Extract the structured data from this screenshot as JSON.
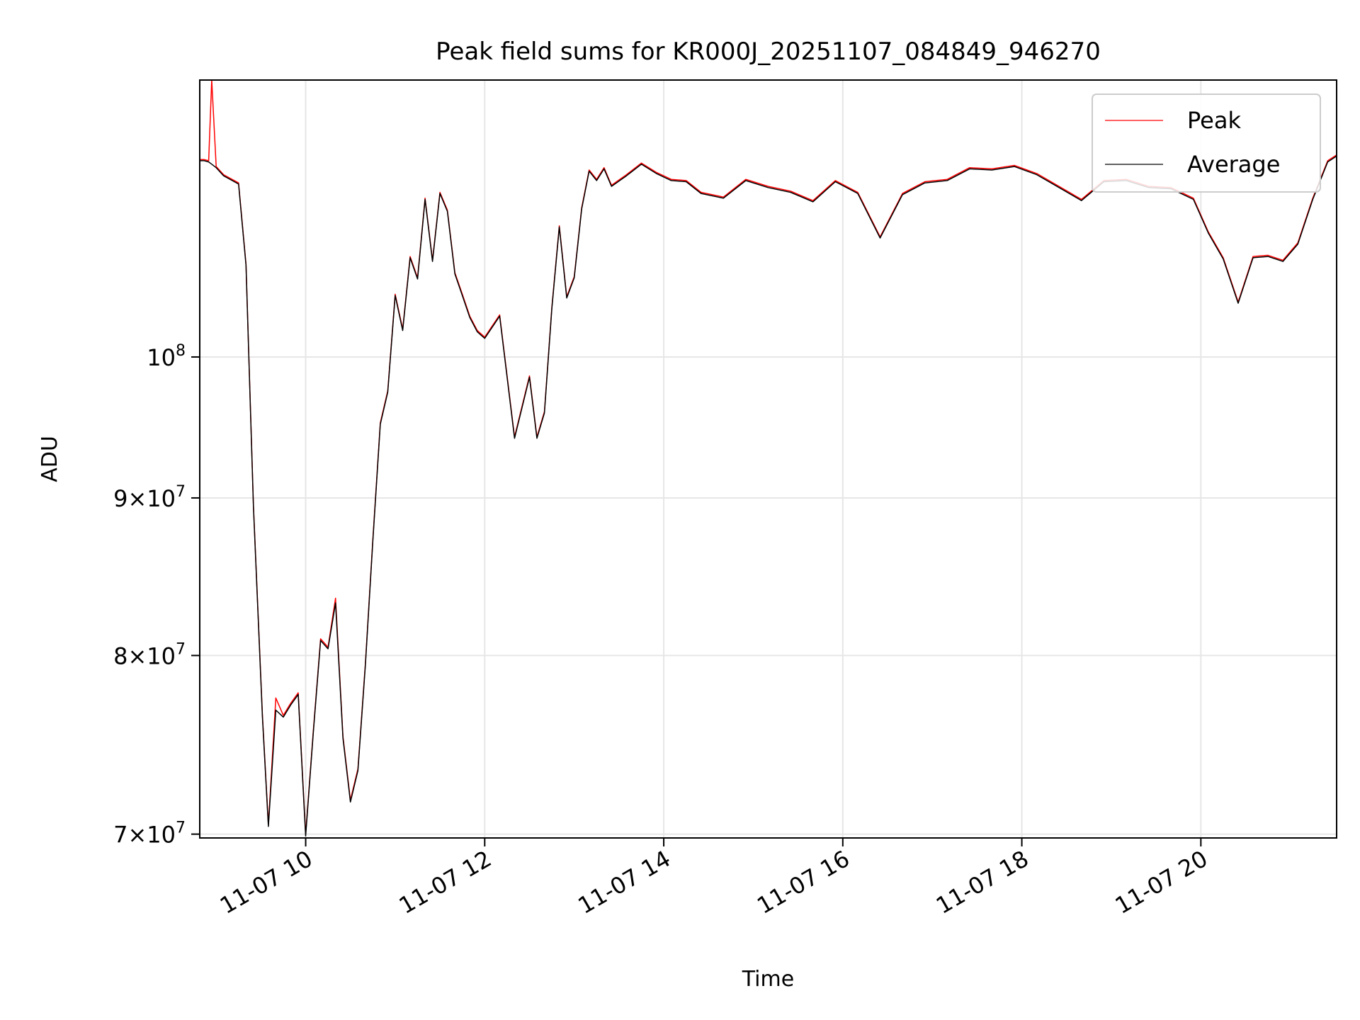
{
  "chart_data": {
    "type": "line",
    "title": "Peak field sums for KR000J_20251107_084849_946270",
    "xlabel": "Time",
    "ylabel": "ADU",
    "y_scale": "log",
    "grid": true,
    "legend_placement": "top-right",
    "colors": {
      "Peak": "#ff0000",
      "Average": "#000000"
    },
    "xlim": [
      "2025-11-07 08:49",
      "2025-11-07 21:31"
    ],
    "ylim": [
      69800000,
      123000000
    ],
    "x_ticks": [
      "11-07 10",
      "11-07 12",
      "11-07 14",
      "11-07 16",
      "11-07 18",
      "11-07 20"
    ],
    "y_ticks": [
      {
        "value": 70000000,
        "mantissa": "7",
        "exponent": "7"
      },
      {
        "value": 80000000,
        "mantissa": "8",
        "exponent": "7"
      },
      {
        "value": 90000000,
        "mantissa": "9",
        "exponent": "7"
      },
      {
        "value": 100000000,
        "base": "10",
        "exponent": "8"
      }
    ],
    "x": [
      "08:49",
      "08:52",
      "08:55",
      "08:57",
      "09:00",
      "09:05",
      "09:15",
      "09:20",
      "09:25",
      "09:31",
      "09:35",
      "09:40",
      "09:45",
      "09:50",
      "09:55",
      "10:00",
      "10:05",
      "10:10",
      "10:15",
      "10:20",
      "10:25",
      "10:30",
      "10:35",
      "10:40",
      "10:45",
      "10:50",
      "10:55",
      "11:00",
      "11:05",
      "11:10",
      "11:15",
      "11:20",
      "11:25",
      "11:30",
      "11:35",
      "11:40",
      "11:45",
      "11:50",
      "11:55",
      "12:00",
      "12:10",
      "12:20",
      "12:30",
      "12:35",
      "12:40",
      "12:45",
      "12:50",
      "12:55",
      "13:00",
      "13:05",
      "13:10",
      "13:15",
      "13:20",
      "13:25",
      "13:35",
      "13:45",
      "13:55",
      "14:05",
      "14:15",
      "14:25",
      "14:40",
      "14:55",
      "15:10",
      "15:25",
      "15:40",
      "15:55",
      "16:10",
      "16:25",
      "16:40",
      "16:55",
      "17:10",
      "17:25",
      "17:40",
      "17:55",
      "18:10",
      "18:25",
      "18:40",
      "18:55",
      "19:10",
      "19:25",
      "19:40",
      "19:55",
      "20:05",
      "20:15",
      "20:25",
      "20:35",
      "20:45",
      "20:55",
      "21:05",
      "21:15",
      "21:25",
      "21:31"
    ],
    "series": [
      {
        "name": "Peak",
        "values": [
          115900000,
          115900000,
          115800000,
          123000000,
          115300000,
          114600000,
          113900000,
          107200000,
          89500000,
          76500000,
          70500000,
          77500000,
          76500000,
          77200000,
          77800000,
          70000000,
          75500000,
          81000000,
          80500000,
          83500000,
          75300000,
          71800000,
          73500000,
          79500000,
          87200000,
          95200000,
          97500000,
          104800000,
          102100000,
          107800000,
          106100000,
          112600000,
          107500000,
          113100000,
          111600000,
          106500000,
          104800000,
          103100000,
          102000000,
          101500000,
          103200000,
          94200000,
          98600000,
          94200000,
          96000000,
          103800000,
          110300000,
          104600000,
          106200000,
          111800000,
          115000000,
          114200000,
          115200000,
          113700000,
          114600000,
          115600000,
          114800000,
          114200000,
          114100000,
          113100000,
          112700000,
          114200000,
          113600000,
          113200000,
          112400000,
          114100000,
          113100000,
          109400000,
          113000000,
          114000000,
          114200000,
          115200000,
          115100000,
          115400000,
          114700000,
          113600000,
          112500000,
          114100000,
          114200000,
          113600000,
          113500000,
          112600000,
          109800000,
          107700000,
          104200000,
          107800000,
          107900000,
          107500000,
          108900000,
          112600000,
          115800000,
          116300000
        ]
      },
      {
        "name": "Average",
        "values": [
          115800000,
          115800000,
          115700000,
          115500000,
          115200000,
          114500000,
          113800000,
          107100000,
          89400000,
          76400000,
          70400000,
          76800000,
          76400000,
          77100000,
          77700000,
          69900000,
          75400000,
          80900000,
          80400000,
          83200000,
          75200000,
          71700000,
          73400000,
          79400000,
          87100000,
          95100000,
          97400000,
          104700000,
          102000000,
          107700000,
          106000000,
          112500000,
          107400000,
          113000000,
          111500000,
          106400000,
          104700000,
          103000000,
          101900000,
          101400000,
          103100000,
          94100000,
          98500000,
          94100000,
          95900000,
          103700000,
          110200000,
          104500000,
          106100000,
          111700000,
          114900000,
          114100000,
          115100000,
          113600000,
          114500000,
          115500000,
          114700000,
          114100000,
          114000000,
          113000000,
          112600000,
          114100000,
          113500000,
          113100000,
          112300000,
          114000000,
          113000000,
          109300000,
          112900000,
          113900000,
          114100000,
          115100000,
          115000000,
          115300000,
          114600000,
          113500000,
          112400000,
          114000000,
          114100000,
          113500000,
          113400000,
          112500000,
          109700000,
          107600000,
          104100000,
          107700000,
          107800000,
          107400000,
          108800000,
          112500000,
          115700000,
          116200000
        ]
      }
    ]
  },
  "legend": {
    "items": [
      {
        "label": "Peak"
      },
      {
        "label": "Average"
      }
    ]
  }
}
